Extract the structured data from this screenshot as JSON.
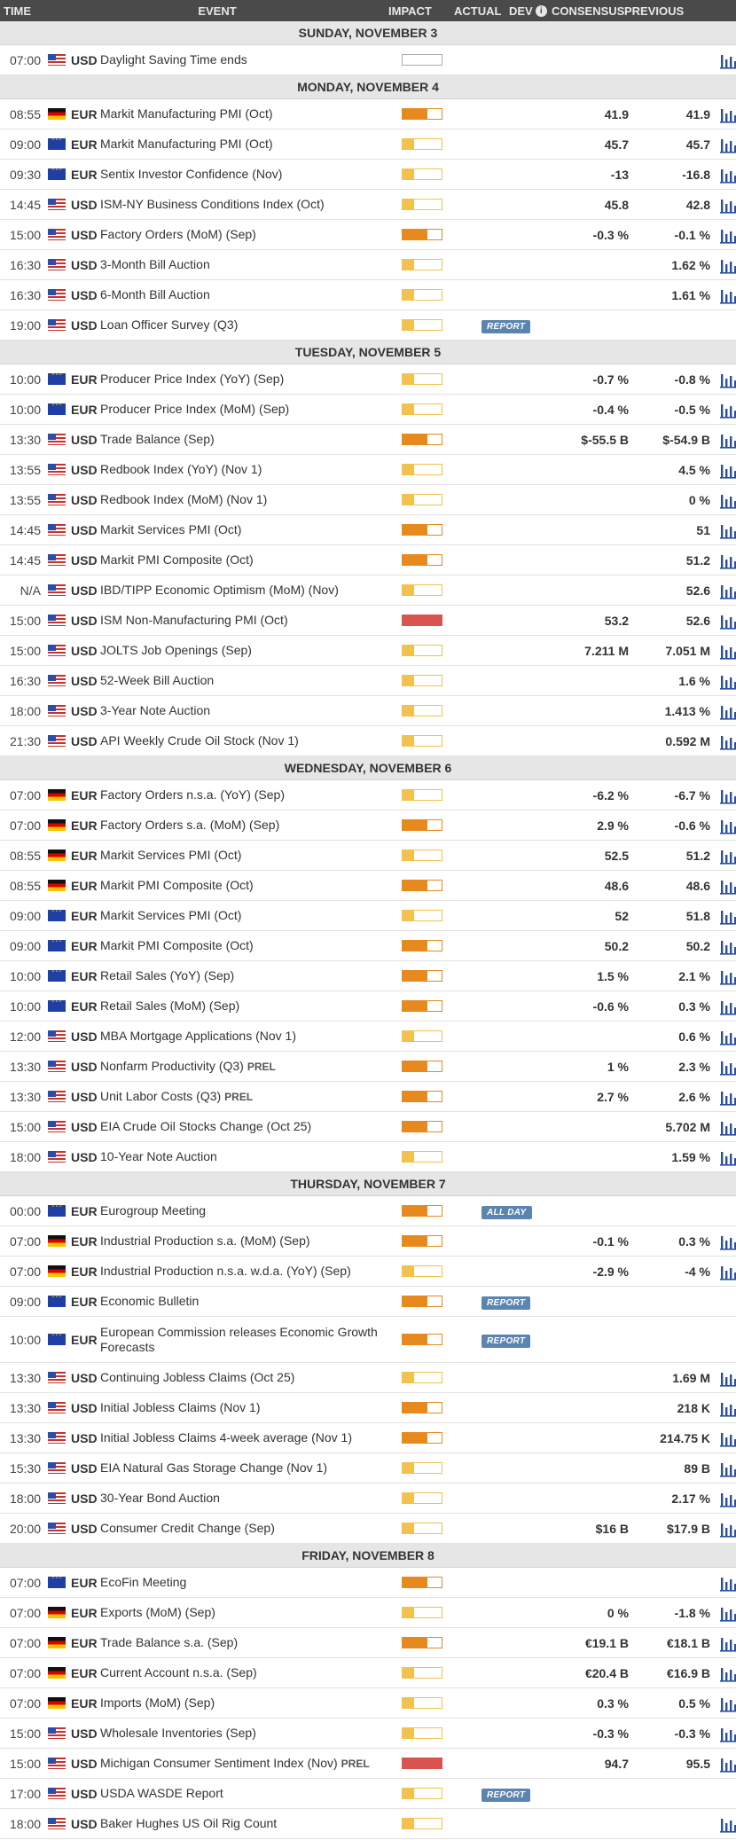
{
  "header": {
    "time": "TIME",
    "event": "EVENT",
    "impact": "IMPACT",
    "actual": "ACTUAL",
    "dev": "DEV",
    "consensus": "CONSENSUS",
    "previous": "PREVIOUS"
  },
  "colors": {
    "impact_low": "#f2c14e",
    "impact_medium": "#e8891e",
    "impact_high": "#d9534f",
    "badge": "#5b84b1",
    "chart_icon": "#2b4fa0"
  },
  "days": [
    {
      "label": "SUNDAY, NOVEMBER 3",
      "events": [
        {
          "time": "07:00",
          "flag": "us",
          "cur": "USD",
          "name": "Daylight Saving Time ends",
          "impact": "none",
          "actual": "",
          "cons": "",
          "prev": "",
          "chart": true
        }
      ]
    },
    {
      "label": "MONDAY, NOVEMBER 4",
      "events": [
        {
          "time": "08:55",
          "flag": "de",
          "cur": "EUR",
          "name": "Markit Manufacturing PMI (Oct)",
          "impact": "med",
          "cons": "41.9",
          "prev": "41.9",
          "chart": true
        },
        {
          "time": "09:00",
          "flag": "eu",
          "cur": "EUR",
          "name": "Markit Manufacturing PMI (Oct)",
          "impact": "low",
          "cons": "45.7",
          "prev": "45.7",
          "chart": true
        },
        {
          "time": "09:30",
          "flag": "eu",
          "cur": "EUR",
          "name": "Sentix Investor Confidence (Nov)",
          "impact": "low",
          "cons": "-13",
          "prev": "-16.8",
          "chart": true
        },
        {
          "time": "14:45",
          "flag": "us",
          "cur": "USD",
          "name": "ISM-NY Business Conditions Index (Oct)",
          "impact": "low",
          "cons": "45.8",
          "prev": "42.8",
          "chart": true
        },
        {
          "time": "15:00",
          "flag": "us",
          "cur": "USD",
          "name": "Factory Orders (MoM) (Sep)",
          "impact": "med",
          "cons": "-0.3 %",
          "prev": "-0.1 %",
          "chart": true
        },
        {
          "time": "16:30",
          "flag": "us",
          "cur": "USD",
          "name": "3-Month Bill Auction",
          "impact": "low",
          "cons": "",
          "prev": "1.62 %",
          "chart": true
        },
        {
          "time": "16:30",
          "flag": "us",
          "cur": "USD",
          "name": "6-Month Bill Auction",
          "impact": "low",
          "cons": "",
          "prev": "1.61 %",
          "chart": true
        },
        {
          "time": "19:00",
          "flag": "us",
          "cur": "USD",
          "name": "Loan Officer Survey (Q3)",
          "impact": "low",
          "badge": "REPORT",
          "cons": "",
          "prev": "",
          "chart": false
        }
      ]
    },
    {
      "label": "TUESDAY, NOVEMBER 5",
      "events": [
        {
          "time": "10:00",
          "flag": "eu",
          "cur": "EUR",
          "name": "Producer Price Index (YoY) (Sep)",
          "impact": "low",
          "cons": "-0.7 %",
          "prev": "-0.8 %",
          "chart": true
        },
        {
          "time": "10:00",
          "flag": "eu",
          "cur": "EUR",
          "name": "Producer Price Index (MoM) (Sep)",
          "impact": "low",
          "cons": "-0.4 %",
          "prev": "-0.5 %",
          "chart": true
        },
        {
          "time": "13:30",
          "flag": "us",
          "cur": "USD",
          "name": "Trade Balance (Sep)",
          "impact": "med",
          "cons": "$-55.5 B",
          "prev": "$-54.9 B",
          "chart": true
        },
        {
          "time": "13:55",
          "flag": "us",
          "cur": "USD",
          "name": "Redbook Index (YoY) (Nov 1)",
          "impact": "low",
          "cons": "",
          "prev": "4.5 %",
          "chart": true
        },
        {
          "time": "13:55",
          "flag": "us",
          "cur": "USD",
          "name": "Redbook Index (MoM) (Nov 1)",
          "impact": "low",
          "cons": "",
          "prev": "0 %",
          "chart": true
        },
        {
          "time": "14:45",
          "flag": "us",
          "cur": "USD",
          "name": "Markit Services PMI (Oct)",
          "impact": "med",
          "cons": "",
          "prev": "51",
          "chart": true
        },
        {
          "time": "14:45",
          "flag": "us",
          "cur": "USD",
          "name": "Markit PMI Composite (Oct)",
          "impact": "med",
          "cons": "",
          "prev": "51.2",
          "chart": true
        },
        {
          "time": "N/A",
          "flag": "us",
          "cur": "USD",
          "name": "IBD/TIPP Economic Optimism (MoM) (Nov)",
          "impact": "low",
          "cons": "",
          "prev": "52.6",
          "chart": true
        },
        {
          "time": "15:00",
          "flag": "us",
          "cur": "USD",
          "name": "ISM Non-Manufacturing PMI (Oct)",
          "impact": "high",
          "cons": "53.2",
          "prev": "52.6",
          "chart": true
        },
        {
          "time": "15:00",
          "flag": "us",
          "cur": "USD",
          "name": "JOLTS Job Openings (Sep)",
          "impact": "low",
          "cons": "7.211 M",
          "prev": "7.051 M",
          "chart": true
        },
        {
          "time": "16:30",
          "flag": "us",
          "cur": "USD",
          "name": "52-Week Bill Auction",
          "impact": "low",
          "cons": "",
          "prev": "1.6 %",
          "chart": true
        },
        {
          "time": "18:00",
          "flag": "us",
          "cur": "USD",
          "name": "3-Year Note Auction",
          "impact": "low",
          "cons": "",
          "prev": "1.413 %",
          "chart": true
        },
        {
          "time": "21:30",
          "flag": "us",
          "cur": "USD",
          "name": "API Weekly Crude Oil Stock (Nov 1)",
          "impact": "low",
          "cons": "",
          "prev": "0.592 M",
          "chart": true
        }
      ]
    },
    {
      "label": "WEDNESDAY, NOVEMBER 6",
      "events": [
        {
          "time": "07:00",
          "flag": "de",
          "cur": "EUR",
          "name": "Factory Orders n.s.a. (YoY) (Sep)",
          "impact": "low",
          "cons": "-6.2 %",
          "prev": "-6.7 %",
          "chart": true
        },
        {
          "time": "07:00",
          "flag": "de",
          "cur": "EUR",
          "name": "Factory Orders s.a. (MoM) (Sep)",
          "impact": "med",
          "cons": "2.9 %",
          "prev": "-0.6 %",
          "chart": true
        },
        {
          "time": "08:55",
          "flag": "de",
          "cur": "EUR",
          "name": "Markit Services PMI (Oct)",
          "impact": "low",
          "cons": "52.5",
          "prev": "51.2",
          "chart": true
        },
        {
          "time": "08:55",
          "flag": "de",
          "cur": "EUR",
          "name": "Markit PMI Composite (Oct)",
          "impact": "med",
          "cons": "48.6",
          "prev": "48.6",
          "chart": true
        },
        {
          "time": "09:00",
          "flag": "eu",
          "cur": "EUR",
          "name": "Markit Services PMI (Oct)",
          "impact": "low",
          "cons": "52",
          "prev": "51.8",
          "chart": true
        },
        {
          "time": "09:00",
          "flag": "eu",
          "cur": "EUR",
          "name": "Markit PMI Composite (Oct)",
          "impact": "med",
          "cons": "50.2",
          "prev": "50.2",
          "chart": true
        },
        {
          "time": "10:00",
          "flag": "eu",
          "cur": "EUR",
          "name": "Retail Sales (YoY) (Sep)",
          "impact": "med",
          "cons": "1.5 %",
          "prev": "2.1 %",
          "chart": true
        },
        {
          "time": "10:00",
          "flag": "eu",
          "cur": "EUR",
          "name": "Retail Sales (MoM) (Sep)",
          "impact": "med",
          "cons": "-0.6 %",
          "prev": "0.3 %",
          "chart": true
        },
        {
          "time": "12:00",
          "flag": "us",
          "cur": "USD",
          "name": "MBA Mortgage Applications (Nov 1)",
          "impact": "low",
          "cons": "",
          "prev": "0.6 %",
          "chart": true
        },
        {
          "time": "13:30",
          "flag": "us",
          "cur": "USD",
          "name": "Nonfarm Productivity (Q3)",
          "prel": "PREL",
          "impact": "med",
          "cons": "1 %",
          "prev": "2.3 %",
          "chart": true
        },
        {
          "time": "13:30",
          "flag": "us",
          "cur": "USD",
          "name": "Unit Labor Costs (Q3)",
          "prel": "PREL",
          "impact": "med",
          "cons": "2.7 %",
          "prev": "2.6 %",
          "chart": true
        },
        {
          "time": "15:00",
          "flag": "us",
          "cur": "USD",
          "name": "EIA Crude Oil Stocks Change (Oct 25)",
          "impact": "med",
          "cons": "",
          "prev": "5.702 M",
          "chart": true
        },
        {
          "time": "18:00",
          "flag": "us",
          "cur": "USD",
          "name": "10-Year Note Auction",
          "impact": "low",
          "cons": "",
          "prev": "1.59 %",
          "chart": true
        }
      ]
    },
    {
      "label": "THURSDAY, NOVEMBER 7",
      "events": [
        {
          "time": "00:00",
          "flag": "eu",
          "cur": "EUR",
          "name": "Eurogroup Meeting",
          "impact": "med",
          "badge": "ALL DAY",
          "cons": "",
          "prev": "",
          "chart": false
        },
        {
          "time": "07:00",
          "flag": "de",
          "cur": "EUR",
          "name": "Industrial Production s.a. (MoM) (Sep)",
          "impact": "med",
          "cons": "-0.1 %",
          "prev": "0.3 %",
          "chart": true
        },
        {
          "time": "07:00",
          "flag": "de",
          "cur": "EUR",
          "name": "Industrial Production n.s.a. w.d.a. (YoY) (Sep)",
          "impact": "low",
          "cons": "-2.9 %",
          "prev": "-4 %",
          "chart": true
        },
        {
          "time": "09:00",
          "flag": "eu",
          "cur": "EUR",
          "name": "Economic Bulletin",
          "impact": "med",
          "badge": "REPORT",
          "cons": "",
          "prev": "",
          "chart": false
        },
        {
          "time": "10:00",
          "flag": "eu",
          "cur": "EUR",
          "name": "European Commission releases Economic Growth Forecasts",
          "impact": "med",
          "badge": "REPORT",
          "cons": "",
          "prev": "",
          "chart": false,
          "tall": true
        },
        {
          "time": "13:30",
          "flag": "us",
          "cur": "USD",
          "name": "Continuing Jobless Claims (Oct 25)",
          "impact": "low",
          "cons": "",
          "prev": "1.69 M",
          "chart": true
        },
        {
          "time": "13:30",
          "flag": "us",
          "cur": "USD",
          "name": "Initial Jobless Claims (Nov 1)",
          "impact": "med",
          "cons": "",
          "prev": "218 K",
          "chart": true
        },
        {
          "time": "13:30",
          "flag": "us",
          "cur": "USD",
          "name": "Initial Jobless Claims 4-week average (Nov 1)",
          "impact": "med",
          "cons": "",
          "prev": "214.75 K",
          "chart": true
        },
        {
          "time": "15:30",
          "flag": "us",
          "cur": "USD",
          "name": "EIA Natural Gas Storage Change (Nov 1)",
          "impact": "low",
          "cons": "",
          "prev": "89 B",
          "chart": true
        },
        {
          "time": "18:00",
          "flag": "us",
          "cur": "USD",
          "name": "30-Year Bond Auction",
          "impact": "low",
          "cons": "",
          "prev": "2.17 %",
          "chart": true
        },
        {
          "time": "20:00",
          "flag": "us",
          "cur": "USD",
          "name": "Consumer Credit Change (Sep)",
          "impact": "low",
          "cons": "$16 B",
          "prev": "$17.9 B",
          "chart": true
        }
      ]
    },
    {
      "label": "FRIDAY, NOVEMBER 8",
      "events": [
        {
          "time": "07:00",
          "flag": "eu",
          "cur": "EUR",
          "name": "EcoFin Meeting",
          "impact": "med",
          "cons": "",
          "prev": "",
          "chart": true
        },
        {
          "time": "07:00",
          "flag": "de",
          "cur": "EUR",
          "name": "Exports (MoM) (Sep)",
          "impact": "low",
          "cons": "0 %",
          "prev": "-1.8 %",
          "chart": true
        },
        {
          "time": "07:00",
          "flag": "de",
          "cur": "EUR",
          "name": "Trade Balance s.a. (Sep)",
          "impact": "med",
          "cons": "€19.1 B",
          "prev": "€18.1 B",
          "chart": true
        },
        {
          "time": "07:00",
          "flag": "de",
          "cur": "EUR",
          "name": "Current Account n.s.a. (Sep)",
          "impact": "low",
          "cons": "€20.4 B",
          "prev": "€16.9 B",
          "chart": true
        },
        {
          "time": "07:00",
          "flag": "de",
          "cur": "EUR",
          "name": "Imports (MoM) (Sep)",
          "impact": "low",
          "cons": "0.3 %",
          "prev": "0.5 %",
          "chart": true
        },
        {
          "time": "15:00",
          "flag": "us",
          "cur": "USD",
          "name": "Wholesale Inventories (Sep)",
          "impact": "low",
          "cons": "-0.3 %",
          "prev": "-0.3 %",
          "chart": true
        },
        {
          "time": "15:00",
          "flag": "us",
          "cur": "USD",
          "name": "Michigan Consumer Sentiment Index (Nov)",
          "prel": "PREL",
          "impact": "high",
          "cons": "94.7",
          "prev": "95.5",
          "chart": true
        },
        {
          "time": "17:00",
          "flag": "us",
          "cur": "USD",
          "name": "USDA WASDE Report",
          "impact": "low",
          "badge": "REPORT",
          "cons": "",
          "prev": "",
          "chart": false
        },
        {
          "time": "18:00",
          "flag": "us",
          "cur": "USD",
          "name": "Baker Hughes US Oil Rig Count",
          "impact": "low",
          "cons": "",
          "prev": "",
          "chart": true
        }
      ]
    }
  ]
}
